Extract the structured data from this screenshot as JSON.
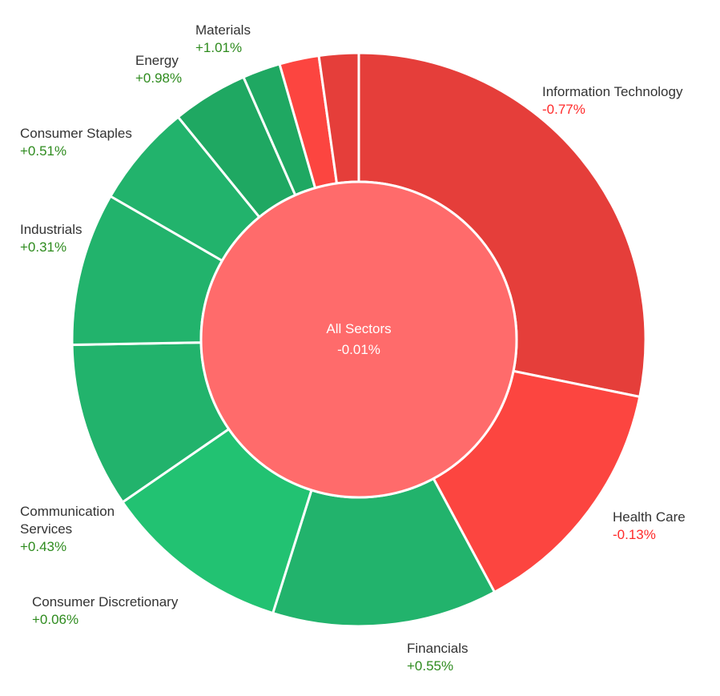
{
  "chart_data": {
    "type": "sunburst",
    "center": {
      "label": "All Sectors",
      "change": "-0.01%",
      "color": "#FF6B6B"
    },
    "colors": {
      "positive_text": "#2E8B1E",
      "negative_text": "#FF2A2A",
      "label_text": "#333333",
      "separator": "#ffffff"
    },
    "segments": [
      {
        "name": "Information Technology",
        "weight": 29.1,
        "change": "-0.77%",
        "color": "#E53E3A",
        "labeled": true
      },
      {
        "name": "Health Care",
        "weight": 14.4,
        "change": "-0.13%",
        "color": "#FC4540",
        "labeled": true
      },
      {
        "name": "Financials",
        "weight": 13.1,
        "change": "+0.55%",
        "color": "#22B36C",
        "labeled": true
      },
      {
        "name": "Consumer Discretionary",
        "weight": 10.9,
        "change": "+0.06%",
        "color": "#22C272",
        "labeled": true
      },
      {
        "name": "Communication Services",
        "weight": 9.6,
        "change": "+0.43%",
        "color": "#22B36C",
        "labeled": true
      },
      {
        "name": "Industrials",
        "weight": 8.9,
        "change": "+0.31%",
        "color": "#22B36C",
        "labeled": true
      },
      {
        "name": "Consumer Staples",
        "weight": 6.0,
        "change": "+0.51%",
        "color": "#22B36C",
        "labeled": true
      },
      {
        "name": "Energy",
        "weight": 4.4,
        "change": "+0.98%",
        "color": "#1FA862",
        "labeled": true
      },
      {
        "name": "Materials",
        "weight": 2.2,
        "change": "+1.01%",
        "color": "#1FA862",
        "labeled": true
      },
      {
        "name": "",
        "weight": 2.3,
        "change": "",
        "color": "#FC4540",
        "labeled": false
      },
      {
        "name": "",
        "weight": 2.3,
        "change": "",
        "color": "#E53E3A",
        "labeled": false
      }
    ]
  }
}
